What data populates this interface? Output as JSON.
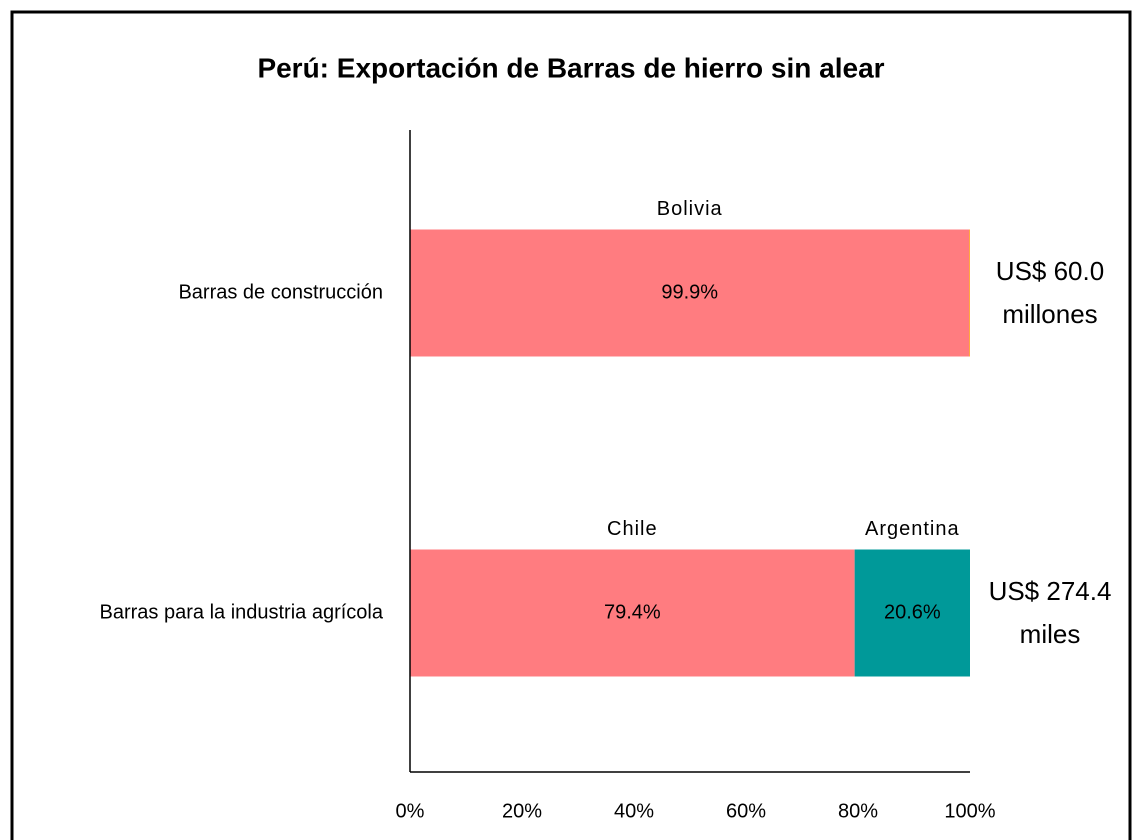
{
  "chart_data": {
    "type": "stacked_barh",
    "title": "Perú: Exportación de Barras de hierro sin alear",
    "categories": [
      "Barras de construcción",
      "Barras para la industria agrícola"
    ],
    "series": [
      {
        "color": "#ff7c80",
        "values": [
          99.9,
          79.4
        ],
        "value_labels": [
          "99.9%",
          "79.4%"
        ],
        "segment_labels": [
          "Bolivia",
          "Chile"
        ]
      },
      {
        "color": "#ffc000",
        "values": [
          0.1,
          null
        ]
      },
      {
        "color": "#009999",
        "values": [
          null,
          20.6
        ],
        "value_labels": [
          null,
          "20.6%"
        ],
        "segment_labels": [
          null,
          "Argentina"
        ]
      }
    ],
    "totals": [
      [
        "US$ 60.0",
        "millones"
      ],
      [
        "US$ 274.4",
        "miles"
      ]
    ],
    "xlim": [
      0,
      100
    ],
    "xticks": [
      {
        "value": 0,
        "label": "0%"
      },
      {
        "value": 20,
        "label": "20%"
      },
      {
        "value": 40,
        "label": "40%"
      },
      {
        "value": 60,
        "label": "60%"
      },
      {
        "value": 80,
        "label": "80%"
      },
      {
        "value": 100,
        "label": "100%"
      }
    ],
    "grid": false
  }
}
